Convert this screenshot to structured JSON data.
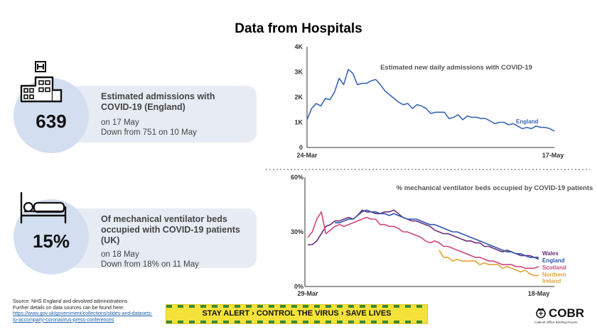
{
  "title": "Data from Hospitals",
  "panel_admissions": {
    "value": "639",
    "heading": "Estimated admissions with COVID-19 (England)",
    "line1": "on 17 May",
    "line2": "Down from 751 on 10 May",
    "icon": "hospital-building-icon"
  },
  "panel_ventilator": {
    "value": "15%",
    "heading": "Of mechanical ventilator beds occupied with COVID-19 patients (UK)",
    "line1": "on 18 May",
    "line2": "Down from 18% on 11 May",
    "icon": "hospital-bed-icon"
  },
  "source": {
    "line1": "Source: NHS England and devolved administrations.",
    "line2": "Further details on data sources can be found here:",
    "link1": "https://www.gov.uk/government/collections/slides-and-datasets-",
    "link2": "to-accompany-coronavirus-press-conferences"
  },
  "banner": {
    "text": "STAY ALERT › CONTROL THE VIRUS › SAVE LIVES",
    "colors": {
      "background": "#f4e23a",
      "stripe": "#3a8a3a"
    }
  },
  "logo": {
    "word": "COBR",
    "small": "Cabinet Office Briefing Rooms"
  },
  "chart_data": [
    {
      "type": "line",
      "title": "Estimated new daily admissions with COVID-19",
      "x_start_label": "24-Mar",
      "x_end_label": "17-May",
      "ylim": [
        0,
        4000
      ],
      "y_ticks": [
        0,
        1000,
        2000,
        3000,
        4000
      ],
      "y_tick_labels": [
        "0",
        "1K",
        "2K",
        "3K",
        "4K"
      ],
      "grid": false,
      "series": [
        {
          "name": "England",
          "color": "#3a64b4",
          "values": [
            1100,
            1550,
            1750,
            1650,
            1950,
            1900,
            2200,
            2750,
            2500,
            3100,
            2950,
            2500,
            2550,
            2550,
            2650,
            2700,
            2500,
            2250,
            2100,
            1950,
            1800,
            1700,
            1750,
            1550,
            1700,
            1650,
            1550,
            1350,
            1400,
            1400,
            1400,
            1150,
            1200,
            1300,
            1100,
            1250,
            1200,
            1200,
            1150,
            1150,
            1050,
            950,
            1000,
            1000,
            900,
            950,
            850,
            750,
            800,
            750,
            850,
            800,
            800,
            750,
            650
          ]
        }
      ]
    },
    {
      "type": "line",
      "title": "% mechanical ventilator beds occupied by COVID-19 patients",
      "x_start_label": "29-Mar",
      "x_end_label": "18-May",
      "ylim": [
        0,
        60
      ],
      "y_ticks": [
        0,
        30,
        60
      ],
      "y_tick_labels": [
        "0%",
        "30%",
        "60%"
      ],
      "grid": false,
      "series": [
        {
          "name": "Wales",
          "color": "#6b2d78",
          "values": [
            23,
            23,
            25,
            29,
            33,
            34,
            36,
            36,
            37,
            38,
            37,
            39,
            42,
            41,
            41,
            40,
            40,
            41,
            41,
            42,
            40,
            38,
            37,
            36,
            36,
            35,
            34,
            33,
            31,
            30,
            29,
            29,
            28,
            27,
            26,
            25,
            25,
            24,
            24,
            22,
            22,
            21,
            20,
            19,
            20,
            19,
            18,
            17,
            17,
            17,
            16,
            16
          ]
        },
        {
          "name": "England",
          "color": "#2f55b0",
          "values": [
            null,
            null,
            null,
            null,
            null,
            null,
            35,
            35,
            36,
            37,
            37,
            39,
            41,
            42,
            41,
            41,
            40,
            40,
            39,
            40,
            39,
            38,
            37,
            37,
            37,
            36,
            35,
            34,
            34,
            33,
            32,
            31,
            30,
            30,
            29,
            28,
            27,
            26,
            25,
            24,
            23,
            22,
            21,
            20,
            19,
            19,
            18,
            18,
            17,
            16,
            16,
            15
          ]
        },
        {
          "name": "Scotland",
          "color": "#d0457a",
          "values": [
            27,
            30,
            37,
            41,
            29,
            31,
            33,
            34,
            33,
            34,
            35,
            36,
            37,
            38,
            37,
            37,
            34,
            34,
            33,
            33,
            32,
            30,
            30,
            29,
            28,
            27,
            25,
            24,
            25,
            24,
            22,
            22,
            21,
            20,
            19,
            18,
            17,
            16,
            16,
            15,
            14,
            14,
            13,
            12,
            12,
            12,
            11,
            11,
            10,
            10,
            10,
            11
          ]
        },
        {
          "name": "Northern\nIreland",
          "color": "#e3a23a",
          "values": [
            null,
            null,
            null,
            null,
            null,
            null,
            null,
            null,
            null,
            null,
            null,
            null,
            null,
            null,
            null,
            null,
            null,
            null,
            null,
            null,
            null,
            null,
            null,
            null,
            null,
            null,
            null,
            null,
            null,
            20,
            16,
            16,
            14,
            15,
            14,
            14,
            14,
            14,
            12,
            13,
            12,
            12,
            12,
            10,
            11,
            10,
            9,
            8,
            9,
            7,
            6,
            6
          ]
        }
      ]
    }
  ]
}
